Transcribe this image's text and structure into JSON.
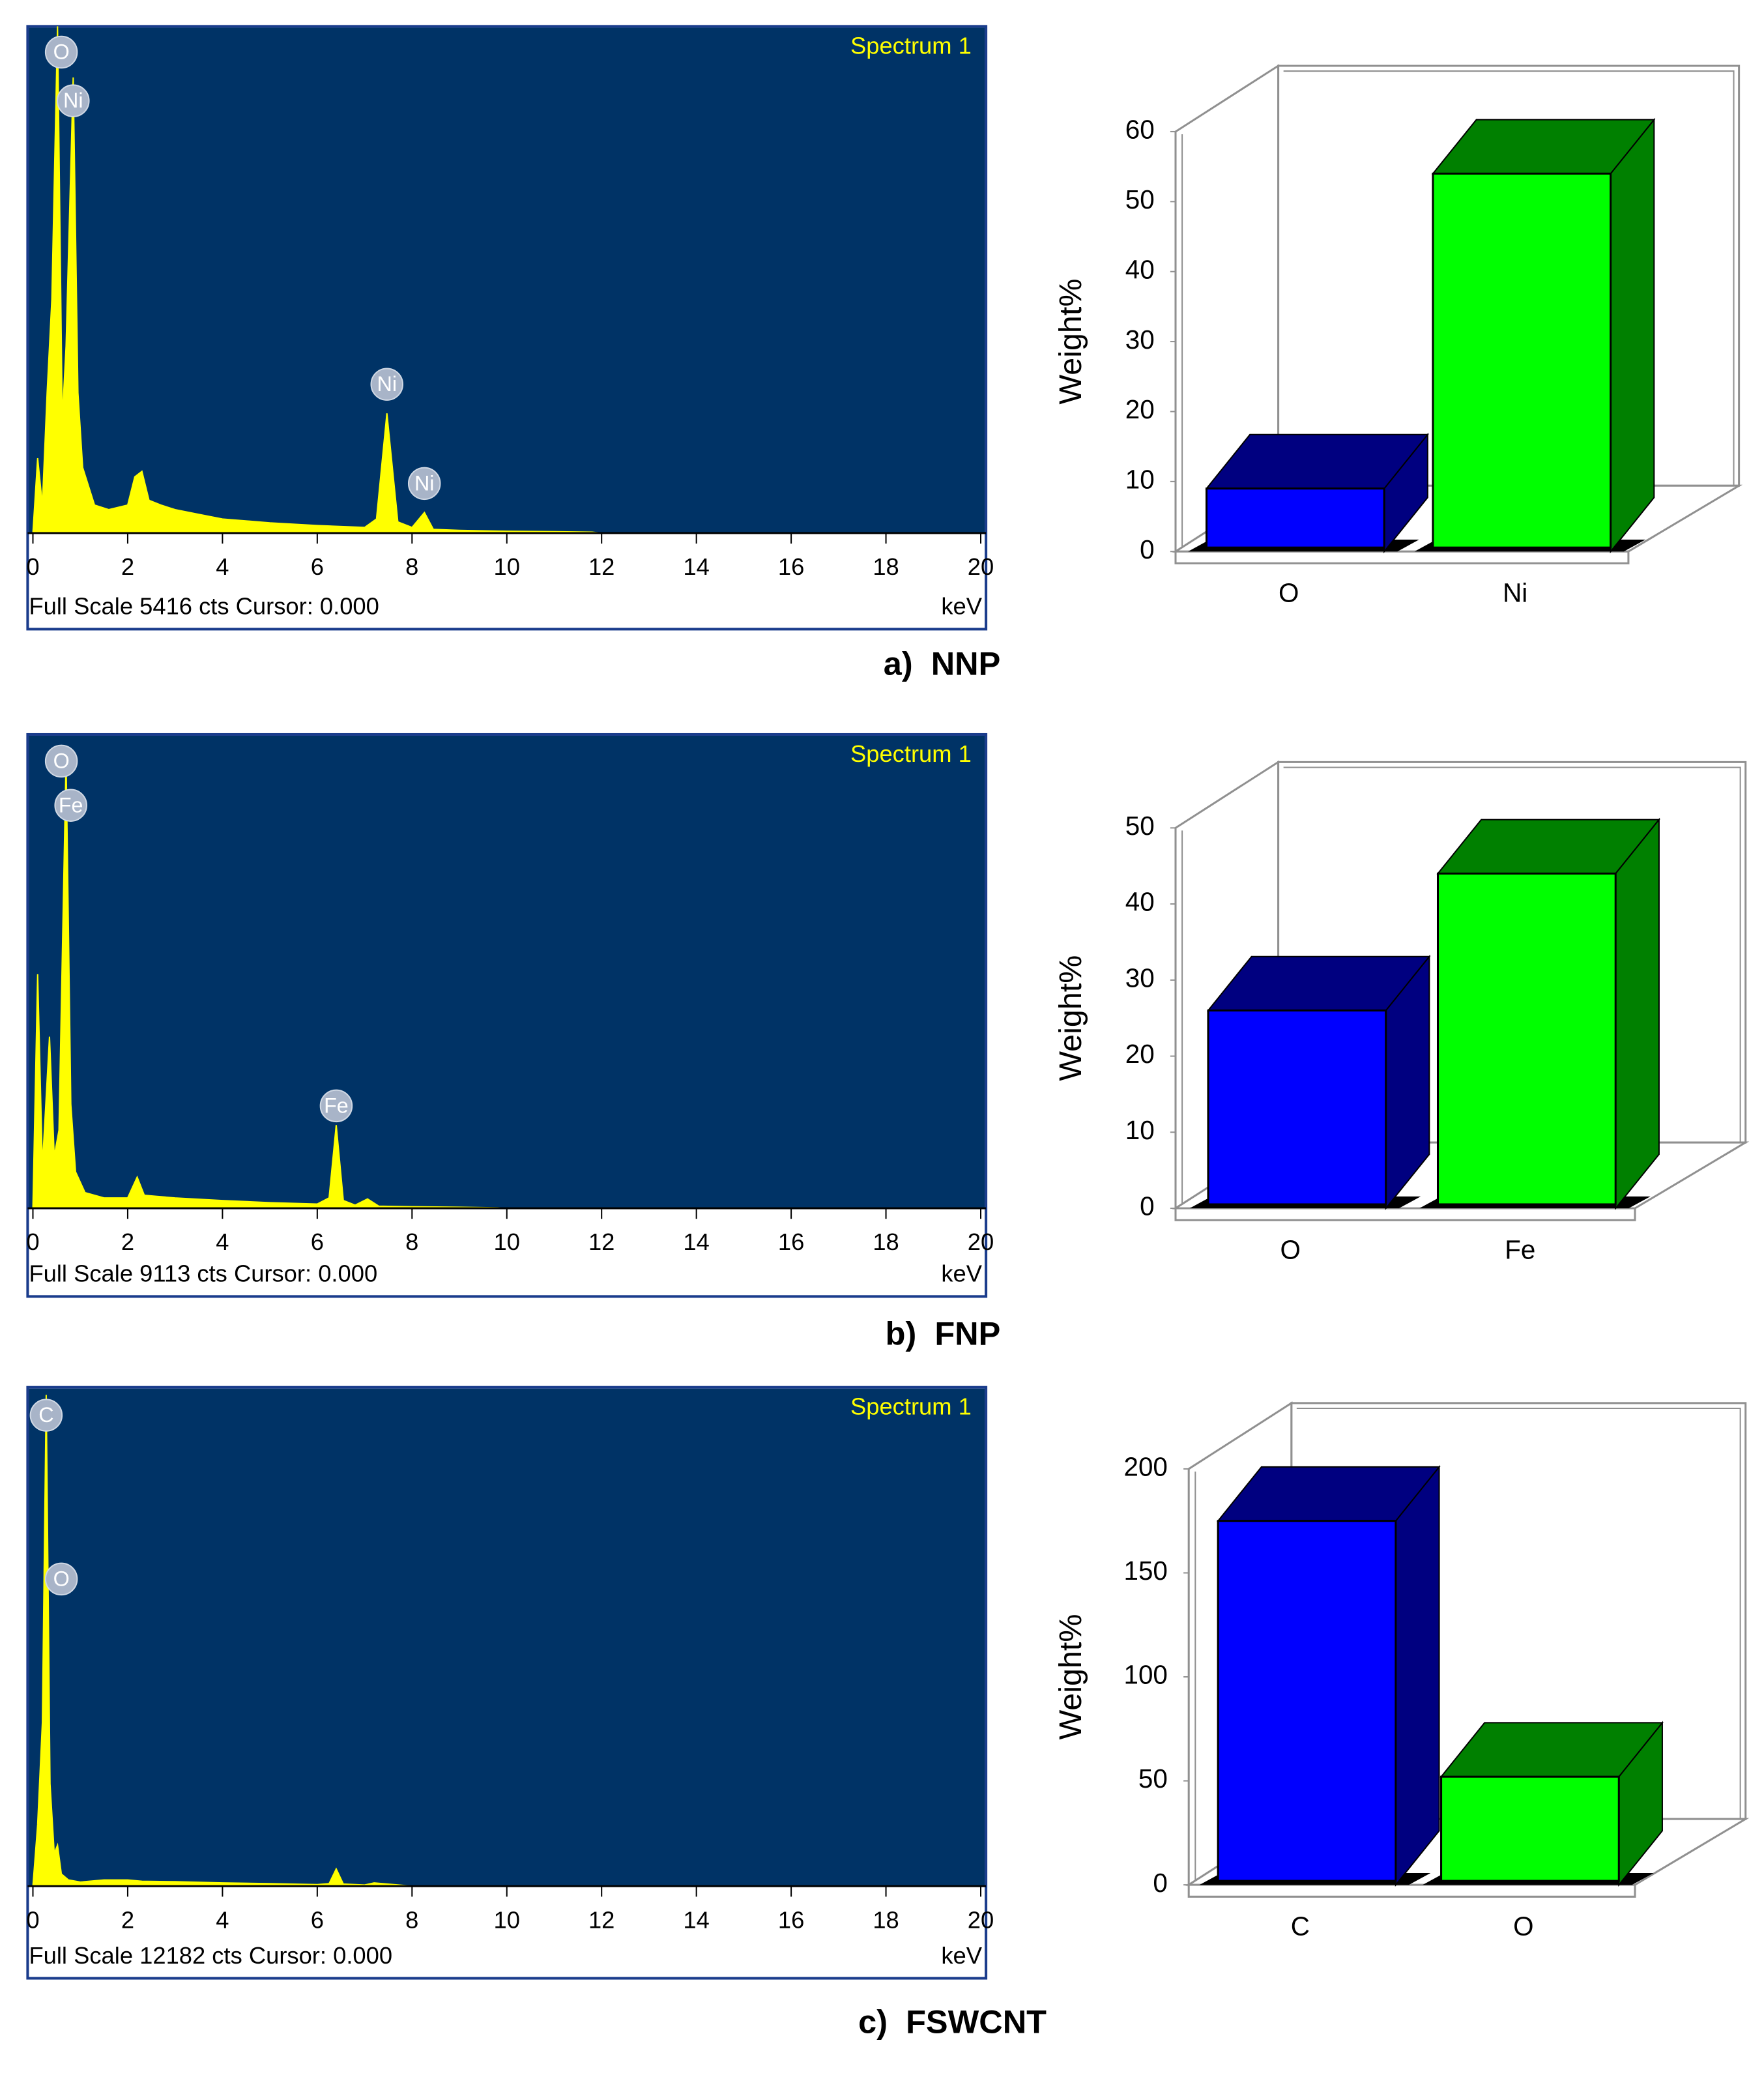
{
  "chart_data": [
    {
      "type": "spectrum",
      "title": "Spectrum 1",
      "footer": "Full Scale 5416 cts Cursor: 0.000",
      "x_unit": "keV",
      "caption": "a)  NNP",
      "color": "#ffff00",
      "background": "#003366",
      "xlim": [
        0,
        20
      ],
      "xticks": [
        0,
        2,
        4,
        6,
        8,
        10,
        12,
        14,
        16,
        18,
        20
      ],
      "ylim": [
        0,
        5416
      ],
      "x": [
        0,
        0.1,
        0.2,
        0.3,
        0.4,
        0.52,
        0.62,
        0.7,
        0.85,
        0.95,
        1.05,
        1.3,
        1.6,
        2.0,
        2.15,
        2.3,
        2.45,
        2.7,
        3.0,
        3.5,
        4,
        5,
        6,
        7,
        7.25,
        7.47,
        7.7,
        8.0,
        8.26,
        8.45,
        9,
        10,
        11,
        11.8,
        12,
        20
      ],
      "values": [
        0,
        800,
        300,
        1500,
        2500,
        5416,
        1200,
        2000,
        4870,
        1500,
        700,
        300,
        250,
        300,
        600,
        660,
        350,
        300,
        250,
        200,
        150,
        110,
        80,
        60,
        150,
        1280,
        120,
        60,
        220,
        40,
        30,
        20,
        15,
        10,
        0,
        0
      ],
      "peak_labels": [
        {
          "label": "O",
          "x": 0.6,
          "y": 5140
        },
        {
          "label": "Ni",
          "x": 0.85,
          "y": 4620
        },
        {
          "label": "Ni",
          "x": 7.47,
          "y": 1590
        },
        {
          "label": "Ni",
          "x": 8.26,
          "y": 530
        }
      ]
    },
    {
      "type": "bar3d",
      "ylabel": "Weight%",
      "categories": [
        "O",
        "Ni"
      ],
      "values": [
        9,
        54
      ],
      "colors": [
        "#0000ff",
        "#00ff00"
      ],
      "ylim": [
        0,
        60
      ],
      "yticks": [
        0,
        10,
        20,
        30,
        40,
        50,
        60
      ]
    },
    {
      "type": "spectrum",
      "title": "Spectrum 1",
      "footer": "Full Scale 9113 cts Cursor: 0.000",
      "x_unit": "keV",
      "caption": "b)  FNP",
      "color": "#ffff00",
      "background": "#003366",
      "xlim": [
        0,
        20
      ],
      "xticks": [
        0,
        2,
        4,
        6,
        8,
        10,
        12,
        14,
        16,
        18,
        20
      ],
      "ylim": [
        0,
        9113
      ],
      "x": [
        0,
        0.1,
        0.2,
        0.35,
        0.45,
        0.55,
        0.7,
        0.8,
        0.9,
        1.1,
        1.5,
        2.0,
        2.2,
        2.35,
        2.6,
        3,
        4,
        5,
        6,
        6.25,
        6.4,
        6.55,
        6.8,
        7.06,
        7.3,
        8,
        9,
        9.8,
        10,
        20
      ],
      "values": [
        0,
        4500,
        800,
        3300,
        1000,
        1500,
        8650,
        2000,
        700,
        300,
        200,
        200,
        600,
        250,
        230,
        200,
        150,
        110,
        80,
        200,
        1600,
        150,
        60,
        180,
        40,
        30,
        20,
        10,
        0,
        0
      ],
      "peak_labels": [
        {
          "label": "O",
          "x": 0.6,
          "y": 8600
        },
        {
          "label": "Fe",
          "x": 0.8,
          "y": 7750
        },
        {
          "label": "Fe",
          "x": 6.4,
          "y": 1970
        }
      ]
    },
    {
      "type": "bar3d",
      "ylabel": "Weight%",
      "categories": [
        "O",
        "Fe"
      ],
      "values": [
        26,
        44
      ],
      "colors": [
        "#0000ff",
        "#00ff00"
      ],
      "ylim": [
        0,
        50
      ],
      "yticks": [
        0,
        10,
        20,
        30,
        40,
        50
      ]
    },
    {
      "type": "spectrum",
      "title": "Spectrum 1",
      "footer": "Full Scale 12182 cts Cursor: 0.000",
      "x_unit": "keV",
      "caption": "c)  FSWCNT",
      "color": "#ffff00",
      "background": "#003366",
      "xlim": [
        0,
        20
      ],
      "xticks": [
        0,
        2,
        4,
        6,
        8,
        10,
        12,
        14,
        16,
        18,
        20
      ],
      "ylim": [
        0,
        12182
      ],
      "x": [
        0,
        0.1,
        0.2,
        0.28,
        0.36,
        0.45,
        0.52,
        0.6,
        0.75,
        1,
        1.5,
        2,
        2.3,
        3,
        4,
        5,
        6,
        6.25,
        6.4,
        6.55,
        7,
        7.2,
        8,
        20
      ],
      "values": [
        0,
        1500,
        4000,
        12000,
        2500,
        800,
        1000,
        300,
        150,
        100,
        150,
        150,
        120,
        110,
        80,
        60,
        40,
        60,
        420,
        50,
        30,
        80,
        0,
        0
      ],
      "peak_labels": [
        {
          "label": "C",
          "x": 0.28,
          "y": 11500
        },
        {
          "label": "O",
          "x": 0.6,
          "y": 7500
        }
      ]
    },
    {
      "type": "bar3d",
      "ylabel": "Weight%",
      "categories": [
        "C",
        "O"
      ],
      "values": [
        175,
        52
      ],
      "colors": [
        "#0000ff",
        "#00ff00"
      ],
      "ylim": [
        0,
        200
      ],
      "yticks": [
        0,
        50,
        100,
        150,
        200
      ]
    }
  ]
}
